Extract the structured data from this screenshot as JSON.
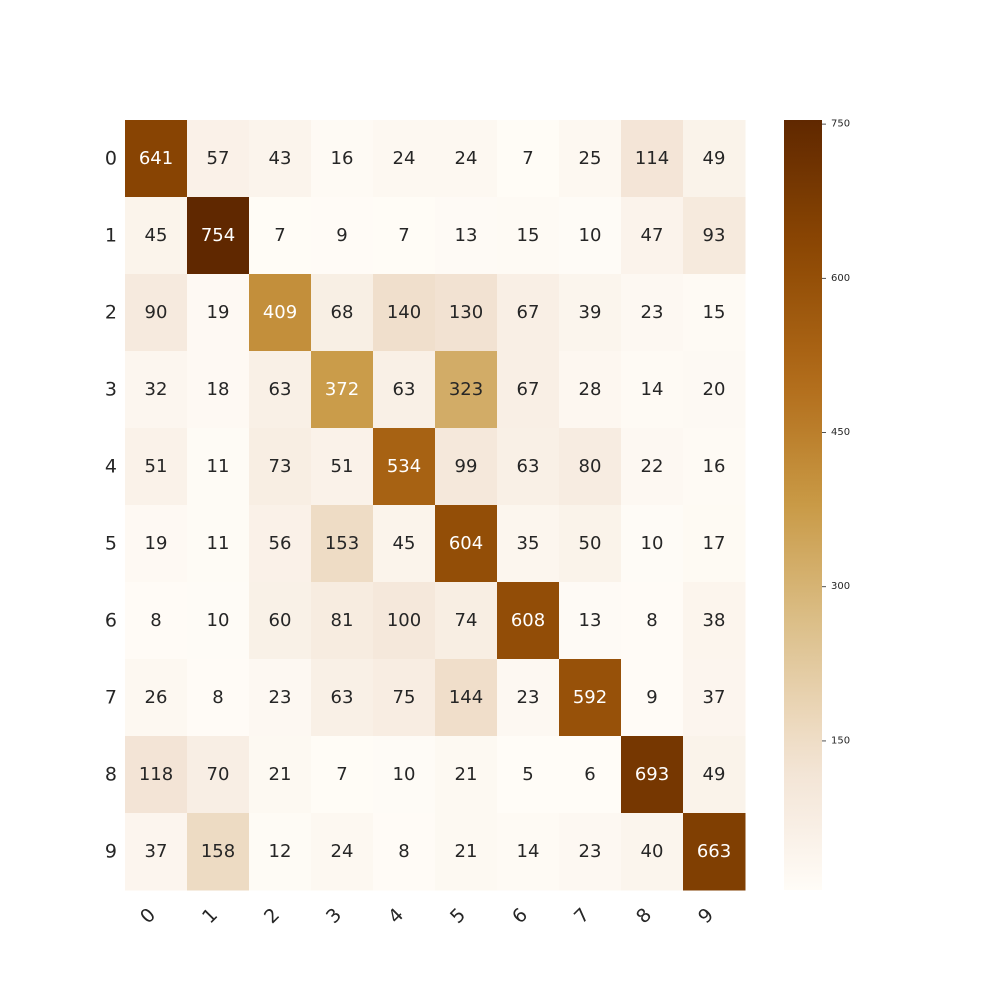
{
  "chart_data": {
    "type": "heatmap",
    "title": "",
    "xlabel": "",
    "ylabel": "",
    "x_categories": [
      "0",
      "1",
      "2",
      "3",
      "4",
      "5",
      "6",
      "7",
      "8",
      "9"
    ],
    "y_categories": [
      "0",
      "1",
      "2",
      "3",
      "4",
      "5",
      "6",
      "7",
      "8",
      "9"
    ],
    "values": [
      [
        641,
        57,
        43,
        16,
        24,
        24,
        7,
        25,
        114,
        49
      ],
      [
        45,
        754,
        7,
        9,
        7,
        13,
        15,
        10,
        47,
        93
      ],
      [
        90,
        19,
        409,
        68,
        140,
        130,
        67,
        39,
        23,
        15
      ],
      [
        32,
        18,
        63,
        372,
        63,
        323,
        67,
        28,
        14,
        20
      ],
      [
        51,
        11,
        73,
        51,
        534,
        99,
        63,
        80,
        22,
        16
      ],
      [
        19,
        11,
        56,
        153,
        45,
        604,
        35,
        50,
        10,
        17
      ],
      [
        8,
        10,
        60,
        81,
        100,
        74,
        608,
        13,
        8,
        38
      ],
      [
        26,
        8,
        23,
        63,
        75,
        144,
        23,
        592,
        9,
        37
      ],
      [
        118,
        70,
        21,
        7,
        10,
        21,
        5,
        6,
        693,
        49
      ],
      [
        37,
        158,
        12,
        24,
        8,
        21,
        14,
        23,
        40,
        663
      ]
    ],
    "color_range": [
      5,
      754
    ],
    "colormap": {
      "name": "light-to-brown",
      "stops": [
        "#fffcf7",
        "#f2e2d2",
        "#ddc28e",
        "#c99a46",
        "#b06a18",
        "#8c4703",
        "#602800"
      ]
    },
    "colorbar": {
      "ticks": [
        150,
        300,
        450,
        600,
        750
      ],
      "tick_labels": [
        "150",
        "300",
        "450",
        "600",
        "750"
      ]
    },
    "annotations": true,
    "text_color_dark": "#262626",
    "text_color_light": "#ffffff",
    "grid": false
  }
}
